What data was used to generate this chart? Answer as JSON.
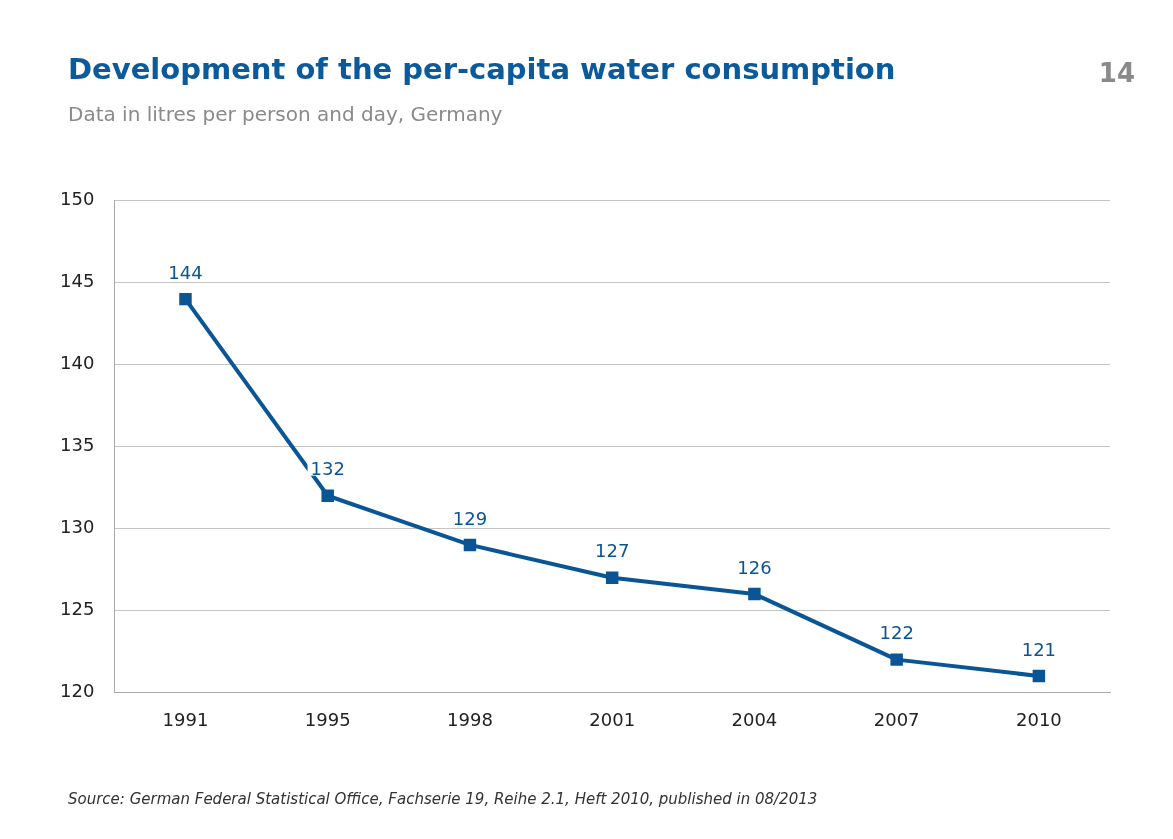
{
  "chart_data": {
    "type": "line",
    "title": "Development of the per-capita water consumption",
    "subtitle": "Data in litres per person and day, Germany",
    "categories": [
      "1991",
      "1995",
      "1998",
      "2001",
      "2004",
      "2007",
      "2010"
    ],
    "series": [
      {
        "color": "#0a5596",
        "values": [
          144,
          132,
          129,
          127,
          126,
          122,
          121
        ]
      }
    ],
    "ylim": [
      120,
      150
    ],
    "yticks": [
      120,
      125,
      130,
      135,
      140,
      145,
      150
    ],
    "grid": "y",
    "legend": false,
    "marker": "square",
    "line_style": "solid",
    "data_labels": true,
    "annotations": [
      "14",
      "Source: German Federal Statistical Office, Fachserie 19, Reihe 2.1, Heft 2010, published in 08/2013"
    ]
  }
}
